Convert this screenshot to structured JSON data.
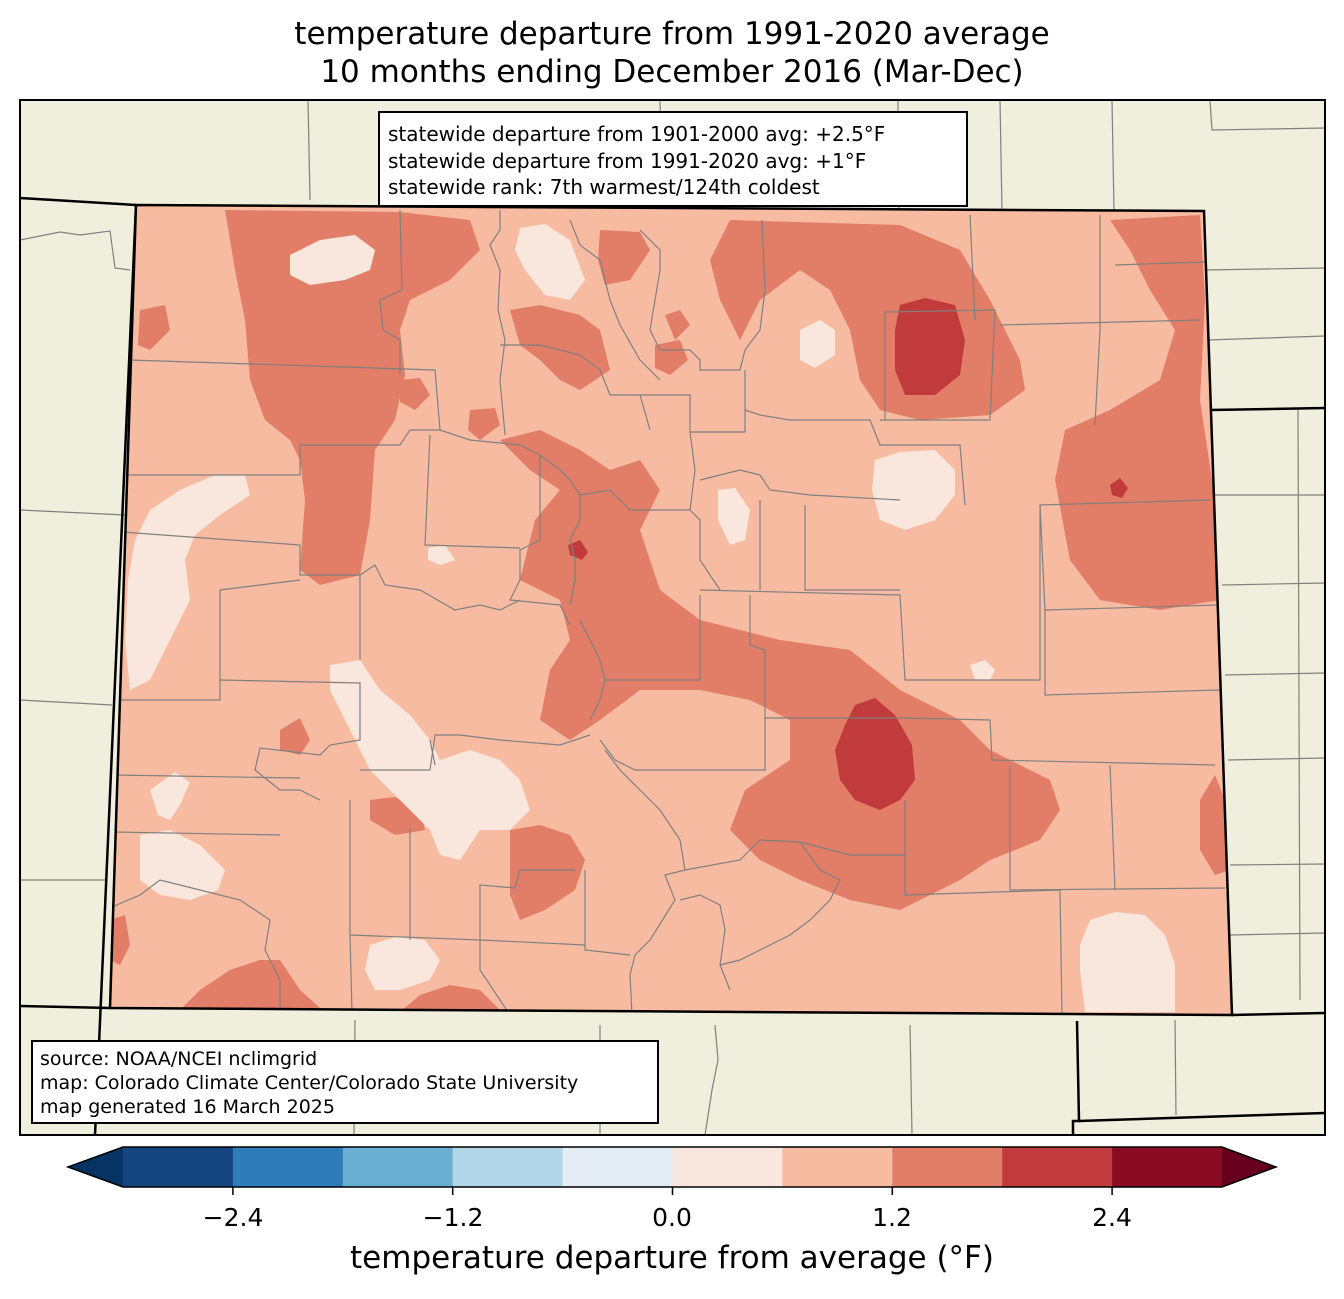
{
  "title": {
    "line1": "temperature departure from 1991-2020 average",
    "line2": "10 months ending December 2016 (Mar-Dec)"
  },
  "stats": {
    "line1": "statewide departure from 1901-2000 avg: +2.5°F",
    "line2": "statewide departure from 1991-2020 avg: +1°F",
    "line3": "statewide rank: 7th warmest/124th coldest"
  },
  "source": {
    "line1": "source: NOAA/NCEI nclimgrid",
    "line2": "map: Colorado Climate Center/Colorado State University",
    "line3": "map generated 16 March 2025"
  },
  "colorbar": {
    "label": "temperature departure from average (°F)",
    "ticks": [
      "−2.4",
      "−1.2",
      "0.0",
      "1.2",
      "2.4"
    ],
    "tick_values": [
      -2.4,
      -1.2,
      0.0,
      1.2,
      2.4
    ],
    "range": [
      -3.0,
      3.0
    ],
    "colors": [
      "#063264",
      "#15457e",
      "#2f7db8",
      "#6aaed3",
      "#b0d6e8",
      "#e3ecf2",
      "#f9e6dc",
      "#f7bba1",
      "#e27d67",
      "#c13b3c",
      "#8a0c24",
      "#67001f"
    ]
  },
  "map": {
    "colors": {
      "land": "#f0eedc",
      "state_border": "#000000",
      "county_border": "#808080",
      "level_0_0.6": "#f9e6dc",
      "level_0.6_1.2": "#f7bba1",
      "level_1.2_1.8": "#e27d67",
      "level_1.8_2.4": "#c13b3c",
      "level_2.4_3.0": "#a41b2c"
    }
  }
}
